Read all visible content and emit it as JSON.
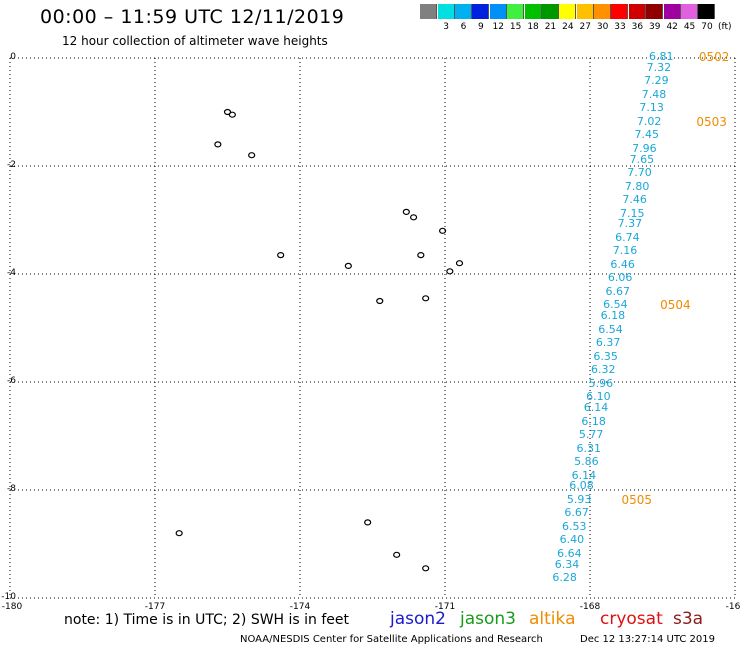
{
  "header": {
    "title": "00:00 – 11:59 UTC 12/11/2019",
    "subtitle": "12 hour collection of altimeter wave heights"
  },
  "legend": {
    "items": [
      {
        "label": "",
        "color": "#808080"
      },
      {
        "label": "3",
        "color": "#00e0e0"
      },
      {
        "label": "6",
        "color": "#00b0f0"
      },
      {
        "label": "9",
        "color": "#0020e0"
      },
      {
        "label": "12",
        "color": "#0090f8"
      },
      {
        "label": "15",
        "color": "#40f040"
      },
      {
        "label": "18",
        "color": "#00c000"
      },
      {
        "label": "21",
        "color": "#009800"
      },
      {
        "label": "24",
        "color": "#ffff00"
      },
      {
        "label": "27",
        "color": "#ffc000"
      },
      {
        "label": "30",
        "color": "#ff9000"
      },
      {
        "label": "33",
        "color": "#ff0000"
      },
      {
        "label": "36",
        "color": "#d00000"
      },
      {
        "label": "39",
        "color": "#900000"
      },
      {
        "label": "42",
        "color": "#a000a0"
      },
      {
        "label": "45",
        "color": "#e060e0"
      },
      {
        "label": "70",
        "color": "#000000"
      }
    ],
    "unit": "(ft)"
  },
  "map": {
    "y_ticks": [
      "0",
      "-2",
      "-4",
      "-6",
      "-8",
      "-10"
    ],
    "x_ticks": [
      "-180",
      "-177",
      "-174",
      "-171",
      "-168",
      "-16"
    ],
    "track_color": "#1aa7d8",
    "time_color": "#f08c00"
  },
  "chart_data": {
    "type": "scatter",
    "xlim": [
      -180,
      -165
    ],
    "ylim": [
      -10,
      0
    ],
    "grid": true,
    "swh_readings": [
      {
        "lon": -166.2,
        "lat": 0.0,
        "swh": "6.81"
      },
      {
        "lon": -166.25,
        "lat": -0.2,
        "swh": "7.32"
      },
      {
        "lon": -166.3,
        "lat": -0.45,
        "swh": "7.29"
      },
      {
        "lon": -166.35,
        "lat": -0.7,
        "swh": "7.48"
      },
      {
        "lon": -166.4,
        "lat": -0.95,
        "swh": "7.13"
      },
      {
        "lon": -166.45,
        "lat": -1.2,
        "swh": "7.02"
      },
      {
        "lon": -166.5,
        "lat": -1.45,
        "swh": "7.45"
      },
      {
        "lon": -166.55,
        "lat": -1.7,
        "swh": "7.96"
      },
      {
        "lon": -166.6,
        "lat": -1.9,
        "swh": "7.65"
      },
      {
        "lon": -166.65,
        "lat": -2.15,
        "swh": "7.70"
      },
      {
        "lon": -166.7,
        "lat": -2.4,
        "swh": "7.80"
      },
      {
        "lon": -166.75,
        "lat": -2.65,
        "swh": "7.46"
      },
      {
        "lon": -166.8,
        "lat": -2.9,
        "swh": "7.15"
      },
      {
        "lon": -166.85,
        "lat": -3.1,
        "swh": "7.37"
      },
      {
        "lon": -166.9,
        "lat": -3.35,
        "swh": "6.74"
      },
      {
        "lon": -166.95,
        "lat": -3.6,
        "swh": "7.16"
      },
      {
        "lon": -167.0,
        "lat": -3.85,
        "swh": "6.46"
      },
      {
        "lon": -167.05,
        "lat": -4.1,
        "swh": "6.06"
      },
      {
        "lon": -167.1,
        "lat": -4.35,
        "swh": "6.67"
      },
      {
        "lon": -167.15,
        "lat": -4.6,
        "swh": "6.54"
      },
      {
        "lon": -167.2,
        "lat": -4.8,
        "swh": "6.18"
      },
      {
        "lon": -167.25,
        "lat": -5.05,
        "swh": "6.54"
      },
      {
        "lon": -167.3,
        "lat": -5.3,
        "swh": "6.37"
      },
      {
        "lon": -167.35,
        "lat": -5.55,
        "swh": "6.35"
      },
      {
        "lon": -167.4,
        "lat": -5.8,
        "swh": "6.32"
      },
      {
        "lon": -167.45,
        "lat": -6.05,
        "swh": "5.96"
      },
      {
        "lon": -167.5,
        "lat": -6.3,
        "swh": "6.10"
      },
      {
        "lon": -167.55,
        "lat": -6.5,
        "swh": "6.14"
      },
      {
        "lon": -167.6,
        "lat": -6.75,
        "swh": "6.18"
      },
      {
        "lon": -167.65,
        "lat": -7.0,
        "swh": "5.77"
      },
      {
        "lon": -167.7,
        "lat": -7.25,
        "swh": "6.31"
      },
      {
        "lon": -167.75,
        "lat": -7.5,
        "swh": "5.86"
      },
      {
        "lon": -167.8,
        "lat": -7.75,
        "swh": "6.14"
      },
      {
        "lon": -167.85,
        "lat": -7.95,
        "swh": "6.08"
      },
      {
        "lon": -167.9,
        "lat": -8.2,
        "swh": "5.93"
      },
      {
        "lon": -167.95,
        "lat": -8.45,
        "swh": "6.67"
      },
      {
        "lon": -168.0,
        "lat": -8.7,
        "swh": "6.53"
      },
      {
        "lon": -168.05,
        "lat": -8.95,
        "swh": "6.40"
      },
      {
        "lon": -168.1,
        "lat": -9.2,
        "swh": "6.64"
      },
      {
        "lon": -168.15,
        "lat": -9.4,
        "swh": "6.34"
      },
      {
        "lon": -168.2,
        "lat": -9.65,
        "swh": "6.28"
      }
    ],
    "time_marks": [
      {
        "lon": -165.5,
        "lat": 0.0,
        "time": "0502"
      },
      {
        "lon": -165.55,
        "lat": -1.2,
        "time": "0503"
      },
      {
        "lon": -166.3,
        "lat": -4.6,
        "time": "0504"
      },
      {
        "lon": -167.1,
        "lat": -8.2,
        "time": "0505"
      }
    ],
    "islands": [
      {
        "lon": -175.5,
        "lat": -1.0
      },
      {
        "lon": -175.4,
        "lat": -1.05
      },
      {
        "lon": -175.7,
        "lat": -1.6
      },
      {
        "lon": -175.0,
        "lat": -1.8
      },
      {
        "lon": -171.8,
        "lat": -2.85
      },
      {
        "lon": -171.65,
        "lat": -2.95
      },
      {
        "lon": -171.05,
        "lat": -3.2
      },
      {
        "lon": -171.5,
        "lat": -3.65
      },
      {
        "lon": -170.7,
        "lat": -3.8
      },
      {
        "lon": -170.9,
        "lat": -3.95
      },
      {
        "lon": -174.4,
        "lat": -3.65
      },
      {
        "lon": -173.0,
        "lat": -3.85
      },
      {
        "lon": -172.35,
        "lat": -4.5
      },
      {
        "lon": -171.4,
        "lat": -4.45
      },
      {
        "lon": -172.6,
        "lat": -8.6
      },
      {
        "lon": -176.5,
        "lat": -8.8
      },
      {
        "lon": -172.0,
        "lat": -9.2
      },
      {
        "lon": -171.4,
        "lat": -9.45
      }
    ]
  },
  "footer": {
    "note": "note: 1) Time is in UTC; 2) SWH is in feet",
    "missions": [
      {
        "label": "jason2",
        "color": "#1a1acc"
      },
      {
        "label": "jason3",
        "color": "#1a9a1a"
      },
      {
        "label": "altika",
        "color": "#f08c00"
      },
      {
        "label": "cryosat",
        "color": "#e01010"
      },
      {
        "label": "s3a",
        "color": "#8b1a1a"
      }
    ],
    "credit": "NOAA/NESDIS Center for Satellite Applications and Research",
    "timestamp": "Dec 12 13:27:14 UTC 2019"
  }
}
